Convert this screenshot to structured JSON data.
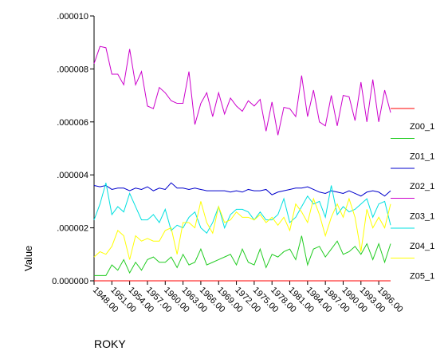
{
  "chart_data": {
    "type": "line",
    "x_label": "ROKY",
    "y_label": "Value",
    "categories": [
      "1948.00",
      null,
      null,
      "1951.00",
      null,
      null,
      "1954.00",
      null,
      null,
      "1957.00",
      null,
      null,
      "1960.00",
      null,
      null,
      "1963.00",
      null,
      null,
      "1966.00",
      null,
      null,
      "1969.00",
      null,
      null,
      "1972.00",
      null,
      null,
      "1975.00",
      null,
      null,
      "1978.00",
      null,
      null,
      "1981.00",
      null,
      null,
      "1984.00",
      null,
      null,
      "1987.00",
      null,
      null,
      "1990.00",
      null,
      null,
      "1993.00",
      null,
      null,
      "1996.00",
      null,
      null
    ],
    "ylim": [
      0,
      1e-05
    ],
    "yticks": [
      {
        "value": 0,
        "label": "0.000000"
      },
      {
        "value": 2e-06,
        "label": ".000002"
      },
      {
        "value": 4e-06,
        "label": ".000004"
      },
      {
        "value": 6e-06,
        "label": ".000006"
      },
      {
        "value": 8e-06,
        "label": ".000008"
      },
      {
        "value": 1e-05,
        "label": ".000010"
      }
    ],
    "series": [
      {
        "name": "Z00_1",
        "color": "#ff0000",
        "values": [
          0,
          0,
          0,
          0,
          0,
          0,
          0,
          0,
          0,
          0,
          0,
          0,
          0,
          0,
          0,
          0,
          0,
          0,
          0,
          0,
          0,
          0,
          0,
          0,
          0,
          0,
          0,
          0,
          0,
          0,
          0,
          0,
          0,
          0,
          0,
          0,
          0,
          0,
          0,
          0,
          0,
          0,
          0,
          0,
          0,
          0,
          0,
          0,
          0,
          0,
          0
        ]
      },
      {
        "name": "Z01_1",
        "color": "#22cc22",
        "values": [
          2e-07,
          2e-07,
          2e-07,
          6e-07,
          4e-07,
          8e-07,
          3e-07,
          7e-07,
          4e-07,
          8e-07,
          9e-07,
          7e-07,
          7e-07,
          9e-07,
          5e-07,
          1e-06,
          6e-07,
          7e-07,
          1.2e-06,
          6e-07,
          7e-07,
          8e-07,
          9e-07,
          1e-06,
          6e-07,
          1.2e-06,
          7e-07,
          6e-07,
          1.2e-06,
          5e-07,
          1e-06,
          9e-07,
          1.1e-06,
          1.2e-06,
          8e-07,
          1.7e-06,
          6e-07,
          1.2e-06,
          1.3e-06,
          9e-07,
          1.2e-06,
          1.5e-06,
          1e-06,
          1.1e-06,
          1.3e-06,
          1e-06,
          1.4e-06,
          8e-07,
          1.4e-06,
          7e-07,
          1.4e-06
        ]
      },
      {
        "name": "Z02_1",
        "color": "#0000cc",
        "values": [
          3.6e-06,
          3.55e-06,
          3.6e-06,
          3.45e-06,
          3.5e-06,
          3.5e-06,
          3.4e-06,
          3.5e-06,
          3.45e-06,
          3.55e-06,
          3.4e-06,
          3.5e-06,
          3.45e-06,
          3.7e-06,
          3.5e-06,
          3.5e-06,
          3.45e-06,
          3.5e-06,
          3.45e-06,
          3.4e-06,
          3.4e-06,
          3.4e-06,
          3.4e-06,
          3.35e-06,
          3.4e-06,
          3.35e-06,
          3.45e-06,
          3.4e-06,
          3.4e-06,
          3.45e-06,
          3.25e-06,
          3.35e-06,
          3.4e-06,
          3.45e-06,
          3.5e-06,
          3.5e-06,
          3.55e-06,
          3.45e-06,
          3.35e-06,
          3.3e-06,
          3.4e-06,
          3.35e-06,
          3.3e-06,
          3.4e-06,
          3.3e-06,
          3.2e-06,
          3.35e-06,
          3.4e-06,
          3.35e-06,
          3.2e-06,
          3.4e-06
        ]
      },
      {
        "name": "Z03_1",
        "color": "#cc00cc",
        "values": [
          8.2e-06,
          8.85e-06,
          8.8e-06,
          7.8e-06,
          7.8e-06,
          7.4e-06,
          8.75e-06,
          7.4e-06,
          7.9e-06,
          6.6e-06,
          6.5e-06,
          7.3e-06,
          7.1e-06,
          6.8e-06,
          6.7e-06,
          6.7e-06,
          7.9e-06,
          5.9e-06,
          6.7e-06,
          7.1e-06,
          6.2e-06,
          7.1e-06,
          6.3e-06,
          6.9e-06,
          6.6e-06,
          6.4e-06,
          6.8e-06,
          6.6e-06,
          6.85e-06,
          5.65e-06,
          6.75e-06,
          5.5e-06,
          6.55e-06,
          6.5e-06,
          6.2e-06,
          7.75e-06,
          6.2e-06,
          7.2e-06,
          6e-06,
          5.85e-06,
          7e-06,
          5.85e-06,
          7e-06,
          6.95e-06,
          6.05e-06,
          7.5e-06,
          6e-06,
          7.6e-06,
          6e-06,
          7.2e-06,
          6.35e-06
        ]
      },
      {
        "name": "Z04_1",
        "color": "#00e0e0",
        "values": [
          2.3e-06,
          2.9e-06,
          3.7e-06,
          2.5e-06,
          2.8e-06,
          2.6e-06,
          3.3e-06,
          2.8e-06,
          2.3e-06,
          2.3e-06,
          2.5e-06,
          2.2e-06,
          2.7e-06,
          1.9e-06,
          2.1e-06,
          2e-06,
          2.4e-06,
          2.6e-06,
          2e-06,
          1.8e-06,
          2.2e-06,
          2.8e-06,
          2e-06,
          2.5e-06,
          2.7e-06,
          2.7e-06,
          2.6e-06,
          2.3e-06,
          2.6e-06,
          2.3e-06,
          2.3e-06,
          2.5e-06,
          3.1e-06,
          2.2e-06,
          2.4e-06,
          2.8e-06,
          3.2e-06,
          2.9e-06,
          3e-06,
          2.4e-06,
          3.6e-06,
          2.5e-06,
          2.8e-06,
          2.6e-06,
          2.7e-06,
          2.9e-06,
          3.1e-06,
          2.4e-06,
          2.9e-06,
          3e-06,
          2.1e-06
        ]
      },
      {
        "name": "Z05_1",
        "color": "#ffff00",
        "values": [
          9e-07,
          1.1e-06,
          1e-06,
          1.3e-06,
          1.9e-06,
          1.7e-06,
          8e-07,
          1.7e-06,
          1.5e-06,
          1.6e-06,
          1.5e-06,
          1.5e-06,
          1.9e-06,
          2e-06,
          1e-06,
          2.2e-06,
          2.2e-06,
          2e-06,
          3e-06,
          2.2e-06,
          1.8e-06,
          2.8e-06,
          2.2e-06,
          2.3e-06,
          2.6e-06,
          2.4e-06,
          2.4e-06,
          2.3e-06,
          2.5e-06,
          2.2e-06,
          2.4e-06,
          2.1e-06,
          2.4e-06,
          1.9e-06,
          2.9e-06,
          2.6e-06,
          2.2e-06,
          3.1e-06,
          2.5e-06,
          1.7e-06,
          2.4e-06,
          2.9e-06,
          2.4e-06,
          3.1e-06,
          2.4e-06,
          1.1e-06,
          2.7e-06,
          2e-06,
          2.4e-06,
          2e-06,
          2.9e-06
        ]
      }
    ]
  }
}
